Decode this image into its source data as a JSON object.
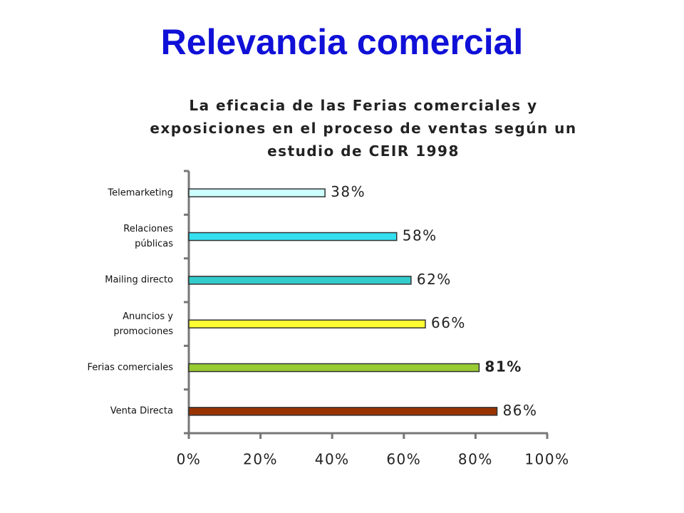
{
  "page_title": "Relevancia comercial",
  "chart_data": {
    "type": "bar",
    "orientation": "horizontal",
    "title": "La eficacia de las Ferias comerciales y\nexposiciones en el proceso de ventas según un\nestudio de CEIR 1998",
    "categories": [
      "Telemarketing",
      "Relaciones\npúblicas",
      "Mailing directo",
      "Anuncios y\npromociones",
      "Ferias comerciales",
      "Venta Directa"
    ],
    "values": [
      38,
      58,
      62,
      66,
      81,
      86
    ],
    "value_labels": [
      "38%",
      "58%",
      "62%",
      "66%",
      "81%",
      "86%"
    ],
    "colors": [
      "#ccffff",
      "#33e0f0",
      "#33cccc",
      "#ffff33",
      "#99cc33",
      "#993300"
    ],
    "bold_label_index": 4,
    "xlim": [
      0,
      100
    ],
    "xticks": [
      {
        "value": 0,
        "label": "0%"
      },
      {
        "value": 20,
        "label": "20%"
      },
      {
        "value": 40,
        "label": "40%"
      },
      {
        "value": 60,
        "label": "60%"
      },
      {
        "value": 80,
        "label": "80%"
      },
      {
        "value": 100,
        "label": "100%"
      }
    ],
    "grid": false
  }
}
